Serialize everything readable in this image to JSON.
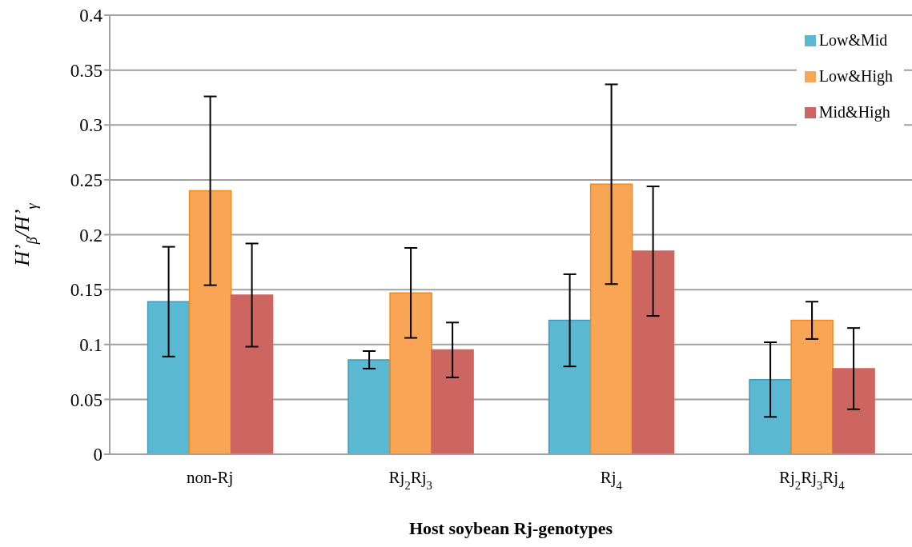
{
  "chart_data": {
    "type": "bar",
    "xlabel": "Host soybean Rj-genotypes",
    "ylabel": "H’$_{β}$/H’$_{γ}$",
    "categories": [
      "non-Rj",
      "Rj$_{2}$Rj$_{3}$",
      "Rj$_{4}$",
      "Rj$_{2}$Rj$_{3}$Rj$_{4}$"
    ],
    "series": [
      {
        "name": "Low&Mid",
        "color": "#5bb8d2",
        "values": [
          0.139,
          0.086,
          0.122,
          0.068
        ],
        "errors": [
          0.05,
          0.008,
          0.042,
          0.034
        ]
      },
      {
        "name": "Low&High",
        "color": "#f8a656",
        "values": [
          0.24,
          0.147,
          0.246,
          0.122
        ],
        "errors": [
          0.086,
          0.041,
          0.091,
          0.017
        ]
      },
      {
        "name": "Mid&High",
        "color": "#cd6660",
        "values": [
          0.145,
          0.095,
          0.185,
          0.078
        ],
        "errors": [
          0.047,
          0.025,
          0.059,
          0.037
        ]
      }
    ],
    "ylim": [
      0,
      0.4
    ],
    "yticks": [
      0,
      0.05,
      0.1,
      0.15,
      0.2,
      0.25,
      0.3,
      0.35,
      0.4
    ],
    "grid": "y",
    "legend": "top right"
  }
}
